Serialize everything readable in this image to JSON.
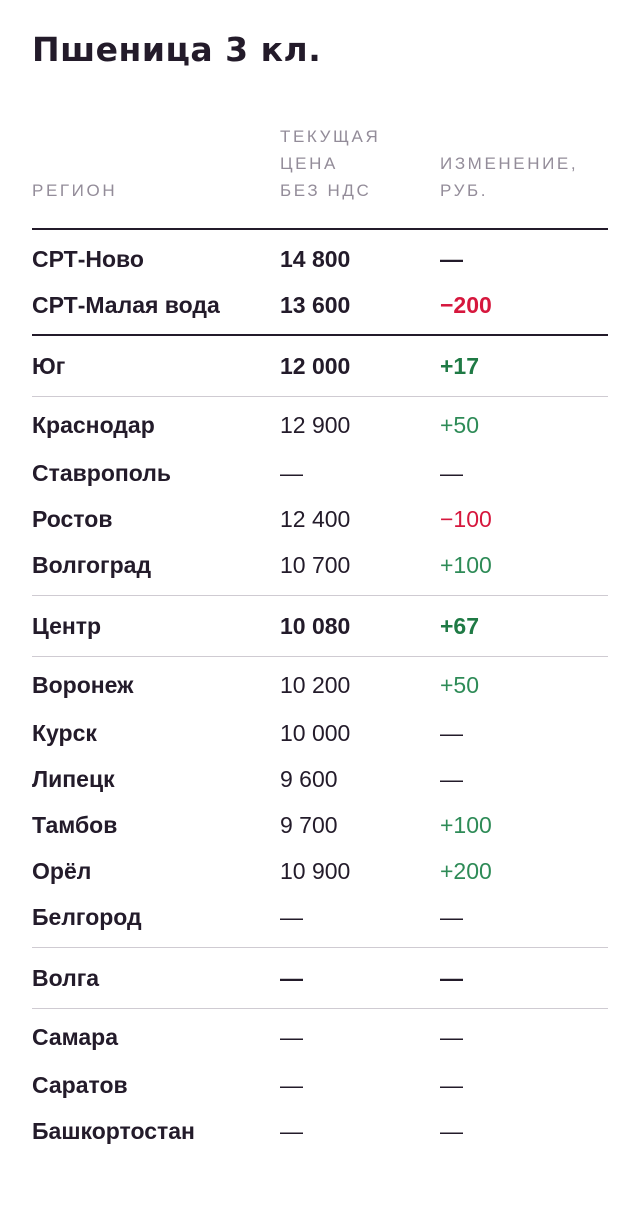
{
  "title": "Пшеница 3 кл.",
  "columns": {
    "region": "РЕГИОН",
    "price": "ТЕКУЩАЯ\nЦЕНА\nБЕЗ НДС",
    "change": "ИЗМЕНЕНИЕ,\nРУБ."
  },
  "colors": {
    "text": "#231b2a",
    "header": "#938c99",
    "positive": "#2e8b57",
    "negative": "#d6173d",
    "divider": "#cfcbd2"
  },
  "rows": [
    {
      "region": "СРТ-Ново",
      "price": "14 800",
      "change": "—"
    },
    {
      "region": "СРТ-Малая вода",
      "price": "13 600",
      "change": "−200"
    },
    {
      "region": "Юг",
      "price": "12 000",
      "change": "+17"
    },
    {
      "region": "Краснодар",
      "price": "12 900",
      "change": "+50"
    },
    {
      "region": "Ставрополь",
      "price": "—",
      "change": "—"
    },
    {
      "region": "Ростов",
      "price": "12 400",
      "change": "−100"
    },
    {
      "region": "Волгоград",
      "price": "10 700",
      "change": "+100"
    },
    {
      "region": "Центр",
      "price": "10 080",
      "change": "+67"
    },
    {
      "region": "Воронеж",
      "price": "10 200",
      "change": "+50"
    },
    {
      "region": "Курск",
      "price": "10 000",
      "change": "—"
    },
    {
      "region": "Липецк",
      "price": "9 600",
      "change": "—"
    },
    {
      "region": "Тамбов",
      "price": "9 700",
      "change": "+100"
    },
    {
      "region": "Орёл",
      "price": "10 900",
      "change": "+200"
    },
    {
      "region": "Белгород",
      "price": "—",
      "change": "—"
    },
    {
      "region": "Волга",
      "price": "—",
      "change": "—"
    },
    {
      "region": "Самара",
      "price": "—",
      "change": "—"
    },
    {
      "region": "Саратов",
      "price": "—",
      "change": "—"
    },
    {
      "region": "Башкортостан",
      "price": "—",
      "change": "—"
    }
  ]
}
